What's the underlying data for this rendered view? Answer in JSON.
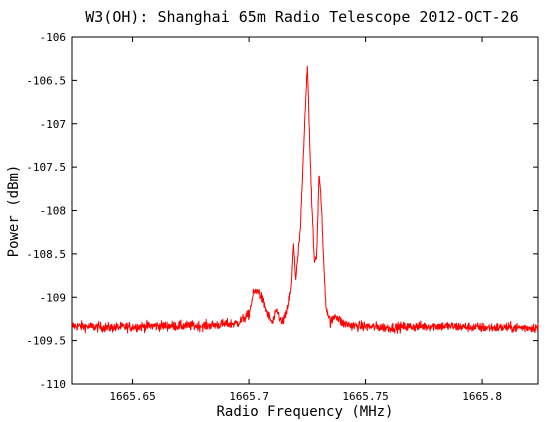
{
  "chart_data": {
    "type": "line",
    "title": "W3(OH): Shanghai 65m Radio Telescope 2012-OCT-26",
    "xlabel": "Radio Frequency (MHz)",
    "ylabel": "Power (dBm)",
    "xlim": [
      1665.624,
      1665.824
    ],
    "ylim": [
      -110,
      -106
    ],
    "x_ticks": [
      1665.65,
      1665.7,
      1665.75,
      1665.8
    ],
    "x_tick_labels": [
      "1665.65",
      "1665.7",
      "1665.75",
      "1665.8"
    ],
    "y_ticks": [
      -106,
      -106.5,
      -107,
      -107.5,
      -108,
      -108.5,
      -109,
      -109.5,
      -110
    ],
    "y_tick_labels": [
      "-106",
      "-106.5",
      "-107",
      "-107.5",
      "-108",
      "-108.5",
      "-109",
      "-109.5",
      "-110"
    ],
    "grid": false,
    "series": [
      {
        "color": "#ff0000",
        "baseline": -109.35,
        "noise_amplitude": 0.06,
        "x": [
          1665.624,
          1665.64,
          1665.66,
          1665.68,
          1665.695,
          1665.7,
          1665.702,
          1665.704,
          1665.706,
          1665.708,
          1665.71,
          1665.712,
          1665.714,
          1665.716,
          1665.718,
          1665.719,
          1665.72,
          1665.722,
          1665.724,
          1665.725,
          1665.726,
          1665.727,
          1665.728,
          1665.729,
          1665.73,
          1665.731,
          1665.732,
          1665.733,
          1665.735,
          1665.737,
          1665.74,
          1665.745,
          1665.76,
          1665.78,
          1665.8,
          1665.824
        ],
        "y": [
          -109.33,
          -109.35,
          -109.33,
          -109.33,
          -109.3,
          -109.2,
          -108.95,
          -108.92,
          -109.05,
          -109.2,
          -109.3,
          -109.15,
          -109.3,
          -109.2,
          -108.9,
          -108.38,
          -108.8,
          -108.2,
          -106.9,
          -106.3,
          -107.2,
          -108.0,
          -108.6,
          -108.5,
          -107.6,
          -107.9,
          -108.6,
          -109.1,
          -109.3,
          -109.2,
          -109.3,
          -109.33,
          -109.35,
          -109.33,
          -109.35,
          -109.35
        ]
      }
    ]
  }
}
